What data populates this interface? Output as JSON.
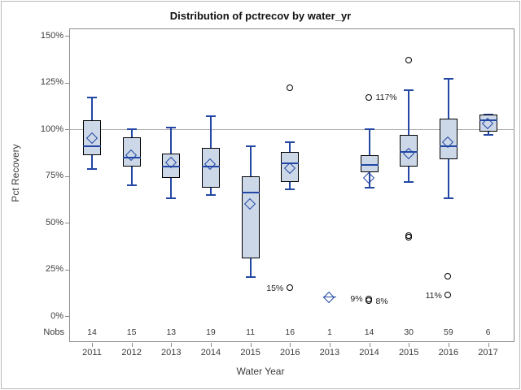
{
  "chart_data": {
    "type": "boxplot",
    "title": "Distribution of pctrecov by water_yr",
    "xlabel": "Water Year",
    "ylabel": "Pct Recovery",
    "nobs_header": "Nobs",
    "ylim": [
      0,
      150
    ],
    "grid": false,
    "legend": "none",
    "reference_line_value": 100,
    "yticks": [
      {
        "value": 0,
        "label": "0%"
      },
      {
        "value": 25,
        "label": "25%"
      },
      {
        "value": 50,
        "label": "50%"
      },
      {
        "value": 75,
        "label": "75%"
      },
      {
        "value": 100,
        "label": "100%"
      },
      {
        "value": 125,
        "label": "125%"
      },
      {
        "value": 150,
        "label": "150%"
      }
    ],
    "categories": [
      {
        "year": "2011",
        "nobs": "14",
        "low": 79,
        "q1": 86,
        "median": 91,
        "mean": 95,
        "q3": 105,
        "high": 117,
        "outliers": []
      },
      {
        "year": "2012",
        "nobs": "15",
        "low": 70,
        "q1": 80,
        "median": 85,
        "mean": 86,
        "q3": 96,
        "high": 100,
        "outliers": []
      },
      {
        "year": "2013",
        "nobs": "13",
        "low": 63,
        "q1": 74,
        "median": 80,
        "mean": 82,
        "q3": 87,
        "high": 101,
        "outliers": []
      },
      {
        "year": "2014",
        "nobs": "19",
        "low": 65,
        "q1": 69,
        "median": 80,
        "mean": 81,
        "q3": 90,
        "high": 107,
        "outliers": []
      },
      {
        "year": "2015",
        "nobs": "11",
        "low": 21,
        "q1": 31,
        "median": 66,
        "mean": 60,
        "q3": 75,
        "high": 91,
        "outliers": []
      },
      {
        "year": "2016",
        "nobs": "16",
        "low": 68,
        "q1": 72,
        "median": 82,
        "mean": 79,
        "q3": 88,
        "high": 93,
        "outliers": [
          122,
          15
        ]
      },
      {
        "year": "2013",
        "nobs": "1",
        "low": null,
        "q1": null,
        "median": 10,
        "mean": 10,
        "q3": null,
        "high": null,
        "outliers": [],
        "single_observation": true
      },
      {
        "year": "2014",
        "nobs": "14",
        "low": 69,
        "q1": 77,
        "median": 81,
        "mean": 74,
        "q3": 86,
        "high": 100,
        "outliers": [
          117,
          9,
          8
        ]
      },
      {
        "year": "2015",
        "nobs": "30",
        "low": 72,
        "q1": 80,
        "median": 88,
        "mean": 87,
        "q3": 97,
        "high": 121,
        "outliers": [
          137,
          43,
          42
        ]
      },
      {
        "year": "2016",
        "nobs": "59",
        "low": 63,
        "q1": 84,
        "median": 91,
        "mean": 93,
        "q3": 106,
        "high": 127,
        "outliers": [
          21,
          11
        ]
      },
      {
        "year": "2017",
        "nobs": "6",
        "low": 97,
        "q1": 99,
        "median": 105,
        "mean": 103,
        "q3": 108,
        "high": 108,
        "outliers": []
      }
    ],
    "annotations": [
      {
        "text": "15%",
        "cat_index": 5,
        "value": 15,
        "side": "left"
      },
      {
        "text": "117%",
        "cat_index": 7,
        "value": 117,
        "side": "right"
      },
      {
        "text": "9%",
        "cat_index": 7,
        "value": 9,
        "side": "left"
      },
      {
        "text": "8%",
        "cat_index": 7,
        "value": 8,
        "side": "right"
      },
      {
        "text": "11%",
        "cat_index": 9,
        "value": 11,
        "side": "left"
      }
    ],
    "colors": {
      "box_fill": "#ccd8e8",
      "box_border": "#000000",
      "line_blue": "#2347a3",
      "outlier_stroke": "#000000",
      "reference_line": "#ababab",
      "frame": "#8c8c8c",
      "text": "#3c3c3c",
      "background": "#ffffff"
    }
  }
}
